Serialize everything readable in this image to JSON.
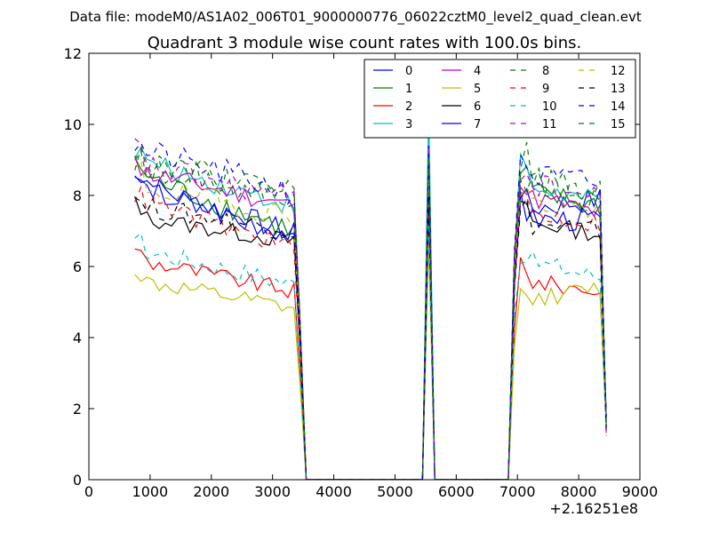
{
  "chart_data": {
    "type": "line",
    "suptitle": "Data file: modeM0/AS1A02_006T01_9000000776_06022cztM0_level2_quad_clean.evt",
    "title": "Quadrant 3 module wise count rates with 100.0s bins.",
    "xlabel": "",
    "ylabel": "",
    "x_offset_label": "+2.16251e8",
    "xlim": [
      0,
      9000
    ],
    "ylim": [
      0,
      12
    ],
    "x_ticks": [
      0,
      1000,
      2000,
      3000,
      4000,
      5000,
      6000,
      7000,
      8000,
      9000
    ],
    "y_ticks": [
      0,
      2,
      4,
      6,
      8,
      10,
      12
    ],
    "legend_position": "top-right",
    "legend_columns": 4,
    "segments": [
      {
        "start": 750,
        "end": 3450,
        "step": 100
      },
      {
        "start": 3450,
        "end": 5350,
        "step": 100
      },
      {
        "start": 5450,
        "end": 5550,
        "step": 100
      },
      {
        "start": 5650,
        "end": 6850,
        "step": 100
      },
      {
        "start": 6950,
        "end": 8450,
        "step": 100
      }
    ],
    "series": [
      {
        "name": "0",
        "color": "#0000ff",
        "dash": "solid",
        "level_a": 8.4,
        "level_b": 7.6,
        "peak": 8.6,
        "end_a": 6.9,
        "end_b": 7.9,
        "jitter": 0.35
      },
      {
        "name": "1",
        "color": "#008000",
        "dash": "solid",
        "level_a": 8.6,
        "level_b": 8.1,
        "peak": 8.8,
        "end_a": 7.0,
        "end_b": 7.7,
        "jitter": 0.35
      },
      {
        "name": "2",
        "color": "#ff0000",
        "dash": "solid",
        "level_a": 6.2,
        "level_b": 5.6,
        "peak": 7.3,
        "end_a": 5.3,
        "end_b": 5.3,
        "jitter": 0.25
      },
      {
        "name": "3",
        "color": "#00bfbf",
        "dash": "solid",
        "level_a": 9.0,
        "level_b": 8.3,
        "peak": 10.5,
        "end_a": 7.7,
        "end_b": 7.8,
        "jitter": 0.3
      },
      {
        "name": "4",
        "color": "#bf00bf",
        "dash": "solid",
        "level_a": 8.7,
        "level_b": 8.0,
        "peak": 9.0,
        "end_a": 7.7,
        "end_b": 7.5,
        "jitter": 0.3
      },
      {
        "name": "5",
        "color": "#bfbf00",
        "dash": "solid",
        "level_a": 5.6,
        "level_b": 5.0,
        "peak": 6.7,
        "end_a": 4.8,
        "end_b": 5.4,
        "jitter": 0.25
      },
      {
        "name": "6",
        "color": "#000000",
        "dash": "solid",
        "level_a": 7.4,
        "level_b": 7.3,
        "peak": 8.2,
        "end_a": 6.7,
        "end_b": 6.9,
        "jitter": 0.25
      },
      {
        "name": "7",
        "color": "#0000ff",
        "dash": "solid",
        "level_a": 8.2,
        "level_b": 7.3,
        "peak": 8.0,
        "end_a": 6.9,
        "end_b": 7.3,
        "jitter": 0.35
      },
      {
        "name": "8",
        "color": "#008000",
        "dash": "dashed",
        "level_a": 8.9,
        "level_b": 8.5,
        "peak": 9.2,
        "end_a": 8.0,
        "end_b": 8.1,
        "jitter": 0.4
      },
      {
        "name": "9",
        "color": "#ff0000",
        "dash": "dashed",
        "level_a": 7.9,
        "level_b": 7.5,
        "peak": 8.1,
        "end_a": 6.5,
        "end_b": 7.2,
        "jitter": 0.3
      },
      {
        "name": "10",
        "color": "#00bfbf",
        "dash": "dashed",
        "level_a": 6.5,
        "level_b": 6.2,
        "peak": 7.2,
        "end_a": 5.5,
        "end_b": 5.7,
        "jitter": 0.3
      },
      {
        "name": "11",
        "color": "#bf00bf",
        "dash": "dashed",
        "level_a": 8.9,
        "level_b": 8.4,
        "peak": 9.4,
        "end_a": 7.9,
        "end_b": 7.9,
        "jitter": 0.35
      },
      {
        "name": "12",
        "color": "#bfbf00",
        "dash": "dashed",
        "level_a": 8.3,
        "level_b": 7.8,
        "peak": 8.5,
        "end_a": 7.4,
        "end_b": 7.6,
        "jitter": 0.35
      },
      {
        "name": "13",
        "color": "#000000",
        "dash": "dashed",
        "level_a": 7.7,
        "level_b": 7.2,
        "peak": 8.0,
        "end_a": 7.0,
        "end_b": 7.0,
        "jitter": 0.3
      },
      {
        "name": "14",
        "color": "#0000ff",
        "dash": "dashed",
        "level_a": 9.3,
        "level_b": 8.6,
        "peak": 9.4,
        "end_a": 8.1,
        "end_b": 8.3,
        "jitter": 0.4
      },
      {
        "name": "15",
        "color": "#008000",
        "dash": "dashed",
        "level_a": 9.0,
        "level_b": 8.5,
        "peak": 9.1,
        "end_a": 8.1,
        "end_b": 7.7,
        "jitter": 0.4
      }
    ]
  }
}
